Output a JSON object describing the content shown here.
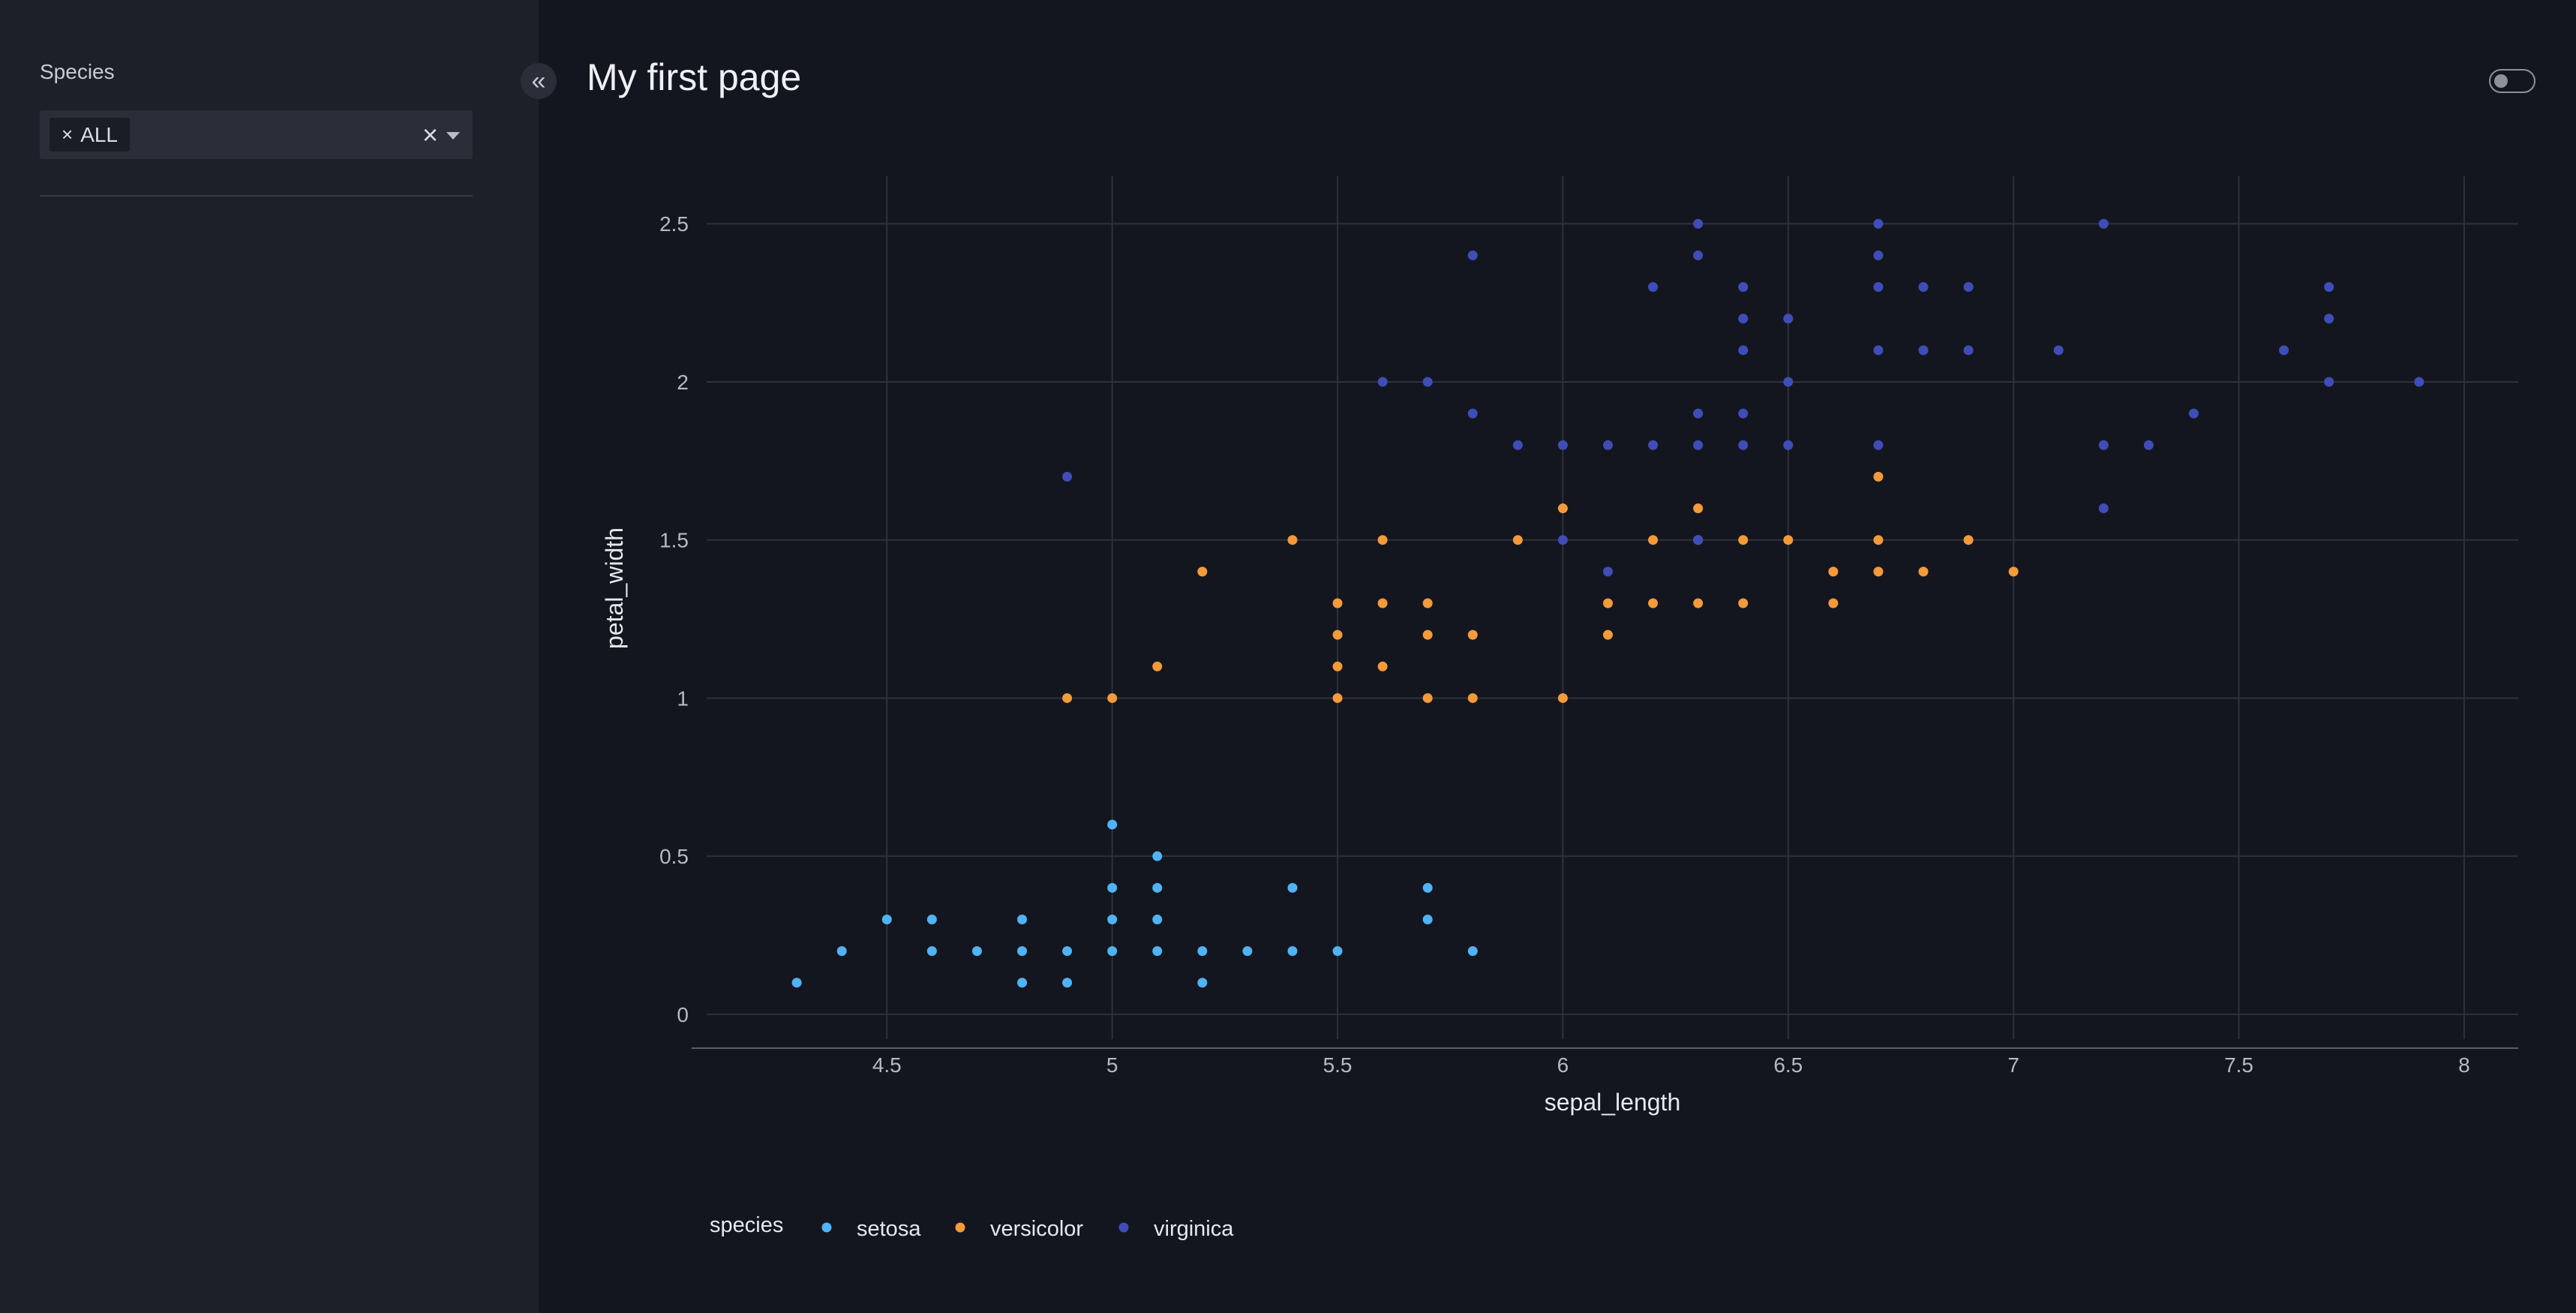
{
  "sidebar": {
    "filter_label": "Species",
    "filter_value": "ALL",
    "chip_remove_glyph": "×",
    "clear_glyph": "×",
    "caret_icon": "caret-down-icon"
  },
  "header": {
    "collapse_glyph": "«",
    "collapse_icon": "double-chevron-left-icon",
    "title": "My first page",
    "toggle_icon": "theme-toggle"
  },
  "colors": {
    "setosa": "#4fb3f5",
    "versicolor": "#f39a3b",
    "virginica": "#3f4db8",
    "grid": "#2e313c",
    "tick_text": "#b7bac4",
    "axis_title": "#e6e8ee"
  },
  "chart_data": {
    "type": "scatter",
    "xlabel": "sepal_length",
    "ylabel": "petal_width",
    "xlim": [
      4.1,
      8.12
    ],
    "ylim": [
      -0.05,
      2.65
    ],
    "xticks": [
      4.5,
      5,
      5.5,
      6,
      6.5,
      7,
      7.5,
      8
    ],
    "yticks": [
      0,
      0.5,
      1,
      1.5,
      2,
      2.5
    ],
    "grid": true,
    "legend": {
      "title": "species",
      "position": "bottom-left"
    },
    "series": [
      {
        "name": "setosa",
        "points": [
          [
            4.3,
            0.1
          ],
          [
            4.4,
            0.2
          ],
          [
            4.5,
            0.3
          ],
          [
            4.6,
            0.2
          ],
          [
            4.6,
            0.3
          ],
          [
            4.7,
            0.2
          ],
          [
            4.8,
            0.1
          ],
          [
            4.8,
            0.2
          ],
          [
            4.8,
            0.3
          ],
          [
            4.9,
            0.1
          ],
          [
            4.9,
            0.2
          ],
          [
            5.0,
            0.2
          ],
          [
            5.0,
            0.3
          ],
          [
            5.0,
            0.4
          ],
          [
            5.0,
            0.6
          ],
          [
            5.1,
            0.2
          ],
          [
            5.1,
            0.3
          ],
          [
            5.1,
            0.4
          ],
          [
            5.1,
            0.5
          ],
          [
            5.2,
            0.1
          ],
          [
            5.2,
            0.2
          ],
          [
            5.3,
            0.2
          ],
          [
            5.4,
            0.2
          ],
          [
            5.4,
            0.4
          ],
          [
            5.5,
            0.2
          ],
          [
            5.7,
            0.3
          ],
          [
            5.7,
            0.4
          ],
          [
            5.8,
            0.2
          ]
        ]
      },
      {
        "name": "versicolor",
        "points": [
          [
            4.9,
            1.0
          ],
          [
            5.0,
            1.0
          ],
          [
            5.1,
            1.1
          ],
          [
            5.2,
            1.4
          ],
          [
            5.4,
            1.5
          ],
          [
            5.5,
            1.0
          ],
          [
            5.5,
            1.1
          ],
          [
            5.5,
            1.2
          ],
          [
            5.5,
            1.3
          ],
          [
            5.6,
            1.1
          ],
          [
            5.6,
            1.3
          ],
          [
            5.6,
            1.5
          ],
          [
            5.7,
            1.0
          ],
          [
            5.7,
            1.2
          ],
          [
            5.7,
            1.3
          ],
          [
            5.8,
            1.0
          ],
          [
            5.8,
            1.2
          ],
          [
            5.9,
            1.5
          ],
          [
            6.0,
            1.0
          ],
          [
            6.0,
            1.6
          ],
          [
            6.1,
            1.2
          ],
          [
            6.1,
            1.3
          ],
          [
            6.2,
            1.3
          ],
          [
            6.2,
            1.5
          ],
          [
            6.3,
            1.3
          ],
          [
            6.3,
            1.5
          ],
          [
            6.3,
            1.6
          ],
          [
            6.4,
            1.3
          ],
          [
            6.4,
            1.5
          ],
          [
            6.5,
            1.5
          ],
          [
            6.6,
            1.3
          ],
          [
            6.6,
            1.4
          ],
          [
            6.7,
            1.4
          ],
          [
            6.7,
            1.5
          ],
          [
            6.7,
            1.7
          ],
          [
            6.8,
            1.4
          ],
          [
            6.9,
            1.5
          ],
          [
            7.0,
            1.4
          ]
        ]
      },
      {
        "name": "virginica",
        "points": [
          [
            4.9,
            1.7
          ],
          [
            5.6,
            2.0
          ],
          [
            5.7,
            2.0
          ],
          [
            5.8,
            1.9
          ],
          [
            5.8,
            2.4
          ],
          [
            5.9,
            1.8
          ],
          [
            6.0,
            1.5
          ],
          [
            6.0,
            1.8
          ],
          [
            6.1,
            1.4
          ],
          [
            6.1,
            1.8
          ],
          [
            6.2,
            1.8
          ],
          [
            6.2,
            2.3
          ],
          [
            6.3,
            1.5
          ],
          [
            6.3,
            1.8
          ],
          [
            6.3,
            1.9
          ],
          [
            6.3,
            2.4
          ],
          [
            6.3,
            2.5
          ],
          [
            6.4,
            1.8
          ],
          [
            6.4,
            1.9
          ],
          [
            6.4,
            2.1
          ],
          [
            6.4,
            2.2
          ],
          [
            6.4,
            2.3
          ],
          [
            6.5,
            1.8
          ],
          [
            6.5,
            2.0
          ],
          [
            6.5,
            2.2
          ],
          [
            6.7,
            1.8
          ],
          [
            6.7,
            2.1
          ],
          [
            6.7,
            2.3
          ],
          [
            6.7,
            2.4
          ],
          [
            6.7,
            2.5
          ],
          [
            6.8,
            2.1
          ],
          [
            6.8,
            2.3
          ],
          [
            6.9,
            2.1
          ],
          [
            6.9,
            2.3
          ],
          [
            7.1,
            2.1
          ],
          [
            7.2,
            1.6
          ],
          [
            7.2,
            1.8
          ],
          [
            7.2,
            2.5
          ],
          [
            7.3,
            1.8
          ],
          [
            7.4,
            1.9
          ],
          [
            7.6,
            2.1
          ],
          [
            7.7,
            2.0
          ],
          [
            7.7,
            2.2
          ],
          [
            7.7,
            2.3
          ],
          [
            7.9,
            2.0
          ]
        ]
      }
    ]
  }
}
